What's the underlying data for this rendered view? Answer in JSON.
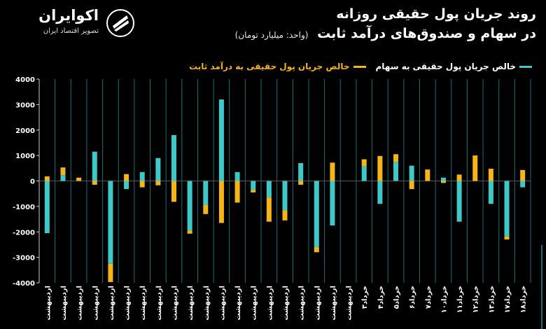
{
  "logo": {
    "brand": "اکوایران",
    "tagline": "تصویر اقتصاد ایران",
    "icon": "ecoiran-logo-icon"
  },
  "header": {
    "title_line1": "روند جریان پول حقیقی روزانه",
    "title_line2": "در سهام و صندوق‌های درآمد ثابت",
    "unit": "(واحد: میلیارد تومان)"
  },
  "colors": {
    "stock": "#3ec8c8",
    "fixed": "#f5b417",
    "background": "#000000",
    "grid": "#1a6d7a"
  },
  "chart_data": {
    "type": "bar",
    "title": "روند جریان پول حقیقی روزانه در سهام و صندوق‌های درآمد ثابت",
    "ylim": [
      -4000,
      4000
    ],
    "yticks": [
      4000,
      3000,
      2000,
      1000,
      0,
      -1000,
      -2000,
      -3000,
      -4000
    ],
    "ytick_labels": [
      "4000",
      "3000",
      "2000",
      "1000",
      "0",
      "-1000",
      "-2000",
      "-3000",
      "-4000"
    ],
    "grid": "vertical",
    "stacked": true,
    "categories": [
      "اردیبهشت",
      "اردیبهشت",
      "اردیبهشت",
      "اردیبهشت",
      "اردیبهشت",
      "اردیبهشت",
      "اردیبهشت",
      "اردیبهشت",
      "اردیبهشت",
      "اردیبهشت",
      "اردیبهشت",
      "اردیبهشت",
      "اردیبهشت",
      "اردیبهشت",
      "اردیبهشت",
      "اردیبهشت",
      "اردیبهشت",
      "اردیبهشت",
      "اردیبهشت",
      "اردیبهشت",
      "خرداد۳",
      "خرداد۴",
      "خرداد۵",
      "خرداد۶",
      "خرداد۷",
      "خرداد۱۰",
      "خرداد۱۱",
      "خرداد۱۲",
      "خرداد۱۳",
      "خرداد۱۷",
      "خرداد۱۸"
    ],
    "series": [
      {
        "name": "خالص جریان پول حقیقی به سهام",
        "values": [
          -2050,
          230,
          0,
          1150,
          -3250,
          -320,
          350,
          900,
          1800,
          -1950,
          -950,
          3200,
          350,
          -350,
          -650,
          -1150,
          700,
          -2600,
          -1750,
          0,
          580,
          -900,
          750,
          600,
          0,
          130,
          -1600,
          0,
          -900,
          -2180,
          -250
        ]
      },
      {
        "name": "خالص جریان پول حقیقی به درآمد ثابت",
        "values": [
          180,
          300,
          130,
          -150,
          -720,
          270,
          -250,
          -170,
          -820,
          -120,
          -350,
          -1650,
          -850,
          -100,
          -950,
          -400,
          -150,
          -200,
          720,
          0,
          270,
          980,
          300,
          -320,
          450,
          -80,
          250,
          1000,
          480,
          -120,
          430
        ]
      }
    ]
  }
}
